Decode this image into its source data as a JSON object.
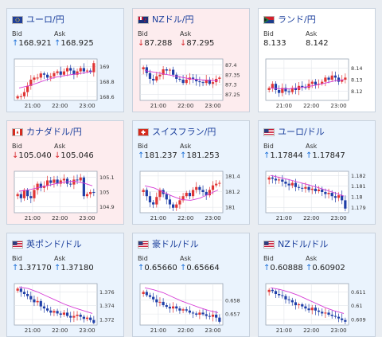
{
  "common": {
    "bid_label": "Bid",
    "ask_label": "Ask"
  },
  "cards": [
    {
      "pair": "ユーロ/円",
      "flag": "eu",
      "trend": "up",
      "bid_dir": "up",
      "ask_dir": "up",
      "bid": "168.921",
      "ask": "168.925",
      "chart_data": {
        "type": "candlestick",
        "x_ticks": [
          "21:00",
          "22:00",
          "23:00"
        ],
        "y_ticks": [
          "169",
          "168.8",
          "168.6"
        ],
        "ylim": [
          168.55,
          169.1
        ]
      }
    },
    {
      "pair": "NZドル/円",
      "flag": "nz",
      "trend": "down",
      "bid_dir": "down",
      "ask_dir": "down",
      "bid": "87.288",
      "ask": "87.295",
      "chart_data": {
        "type": "candlestick",
        "x_ticks": [
          "21:00",
          "22:00",
          "23:00"
        ],
        "y_ticks": [
          "87.4",
          "87.35",
          "87.3",
          "87.25"
        ],
        "ylim": [
          87.22,
          87.43
        ]
      }
    },
    {
      "pair": "ランド/円",
      "flag": "za",
      "trend": "none",
      "bid_dir": "",
      "ask_dir": "",
      "bid": "8.133",
      "ask": "8.142",
      "chart_data": {
        "type": "candlestick",
        "x_ticks": [
          "21:00",
          "22:00",
          "23:00"
        ],
        "y_ticks": [
          "8.14",
          "8.13",
          "8.12"
        ],
        "ylim": [
          8.112,
          8.148
        ]
      }
    },
    {
      "pair": "カナダドル/円",
      "flag": "ca",
      "trend": "down",
      "bid_dir": "down",
      "ask_dir": "down",
      "bid": "105.040",
      "ask": "105.046",
      "chart_data": {
        "type": "candlestick",
        "x_ticks": [
          "21:00",
          "22:00",
          "23:00"
        ],
        "y_ticks": [
          "105.1",
          "105",
          "104.9"
        ],
        "ylim": [
          104.86,
          105.14
        ]
      }
    },
    {
      "pair": "スイスフラン/円",
      "flag": "ch",
      "trend": "up",
      "bid_dir": "up",
      "ask_dir": "up",
      "bid": "181.237",
      "ask": "181.253",
      "chart_data": {
        "type": "candlestick",
        "x_ticks": [
          "21:00",
          "22:00",
          "23:00"
        ],
        "y_ticks": [
          "181.4",
          "181.2",
          "181"
        ],
        "ylim": [
          180.93,
          181.46
        ]
      }
    },
    {
      "pair": "ユーロ/ドル",
      "flag": "us",
      "trend": "up",
      "bid_dir": "up",
      "ask_dir": "up",
      "bid": "1.17844",
      "ask": "1.17847",
      "chart_data": {
        "type": "candlestick",
        "x_ticks": [
          "21:00",
          "22:00",
          "23:00"
        ],
        "y_ticks": [
          "1.182",
          "1.181",
          "1.18",
          "1.179"
        ],
        "ylim": [
          1.1785,
          1.1824
        ]
      }
    },
    {
      "pair": "英ポンド/ドル",
      "flag": "us",
      "trend": "up",
      "bid_dir": "up",
      "ask_dir": "up",
      "bid": "1.37170",
      "ask": "1.37180",
      "chart_data": {
        "type": "candlestick",
        "x_ticks": [
          "21:00",
          "22:00",
          "23:00"
        ],
        "y_ticks": [
          "1.376",
          "1.374",
          "1.372"
        ],
        "ylim": [
          1.3712,
          1.3772
        ]
      }
    },
    {
      "pair": "豪ドル/ドル",
      "flag": "us",
      "trend": "up",
      "bid_dir": "up",
      "ask_dir": "up",
      "bid": "0.65660",
      "ask": "0.65664",
      "chart_data": {
        "type": "candlestick",
        "x_ticks": [
          "21:00",
          "22:00",
          "23:00"
        ],
        "y_ticks": [
          "0.658",
          "0.657"
        ],
        "ylim": [
          0.6562,
          0.6592
        ]
      }
    },
    {
      "pair": "NZドル/ドル",
      "flag": "us",
      "trend": "up",
      "bid_dir": "up",
      "ask_dir": "up",
      "bid": "0.60888",
      "ask": "0.60902",
      "chart_data": {
        "type": "candlestick",
        "x_ticks": [
          "21:00",
          "22:00",
          "23:00"
        ],
        "y_ticks": [
          "0.611",
          "0.61",
          "0.609"
        ],
        "ylim": [
          0.6086,
          0.6116
        ]
      }
    }
  ]
}
